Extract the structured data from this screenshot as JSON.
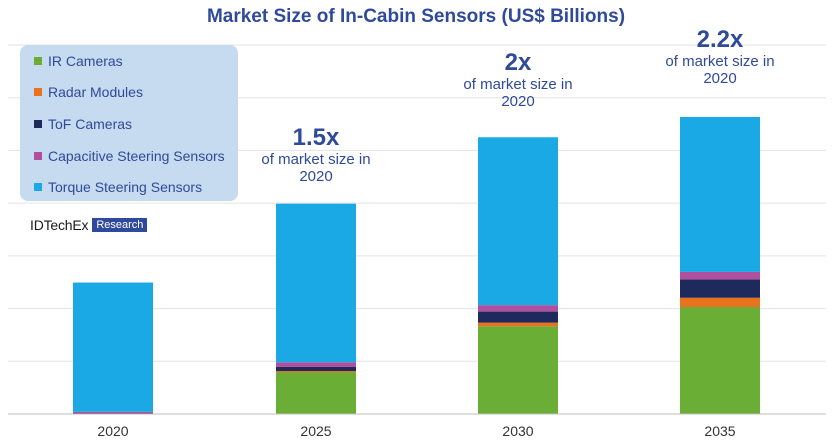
{
  "chart_data": {
    "type": "bar",
    "stacked": true,
    "title": "Market Size of In-Cabin Sensors (US$ Billions)",
    "categories": [
      "2020",
      "2025",
      "2030",
      "2035"
    ],
    "series": [
      {
        "name": "IR Cameras",
        "color": "#6aae35",
        "values": [
          0.0,
          4.5,
          9.5,
          11.6
        ]
      },
      {
        "name": "Radar Modules",
        "color": "#e8731c",
        "values": [
          0.05,
          0.15,
          0.4,
          1.0
        ]
      },
      {
        "name": "ToF Cameras",
        "color": "#1f2a5c",
        "values": [
          0.05,
          0.45,
          1.2,
          2.0
        ]
      },
      {
        "name": "Capacitive Steering Sensors",
        "color": "#b04f9e",
        "values": [
          0.15,
          0.5,
          0.7,
          0.8
        ]
      },
      {
        "name": "Torque Steering Sensors",
        "color": "#1ba9e6",
        "values": [
          14.0,
          17.2,
          18.2,
          16.8
        ]
      }
    ],
    "ylim": [
      0,
      40
    ],
    "grid": true,
    "annotations": [
      {
        "category": "2025",
        "multiplier": "1.5x",
        "text": "of market size in 2020"
      },
      {
        "category": "2030",
        "multiplier": "2x",
        "text": "of market size in 2020"
      },
      {
        "category": "2035",
        "multiplier": "2.2x",
        "text": "of market size in 2020"
      }
    ]
  },
  "logo": {
    "name": "IDTechEx",
    "badge": "Research"
  }
}
